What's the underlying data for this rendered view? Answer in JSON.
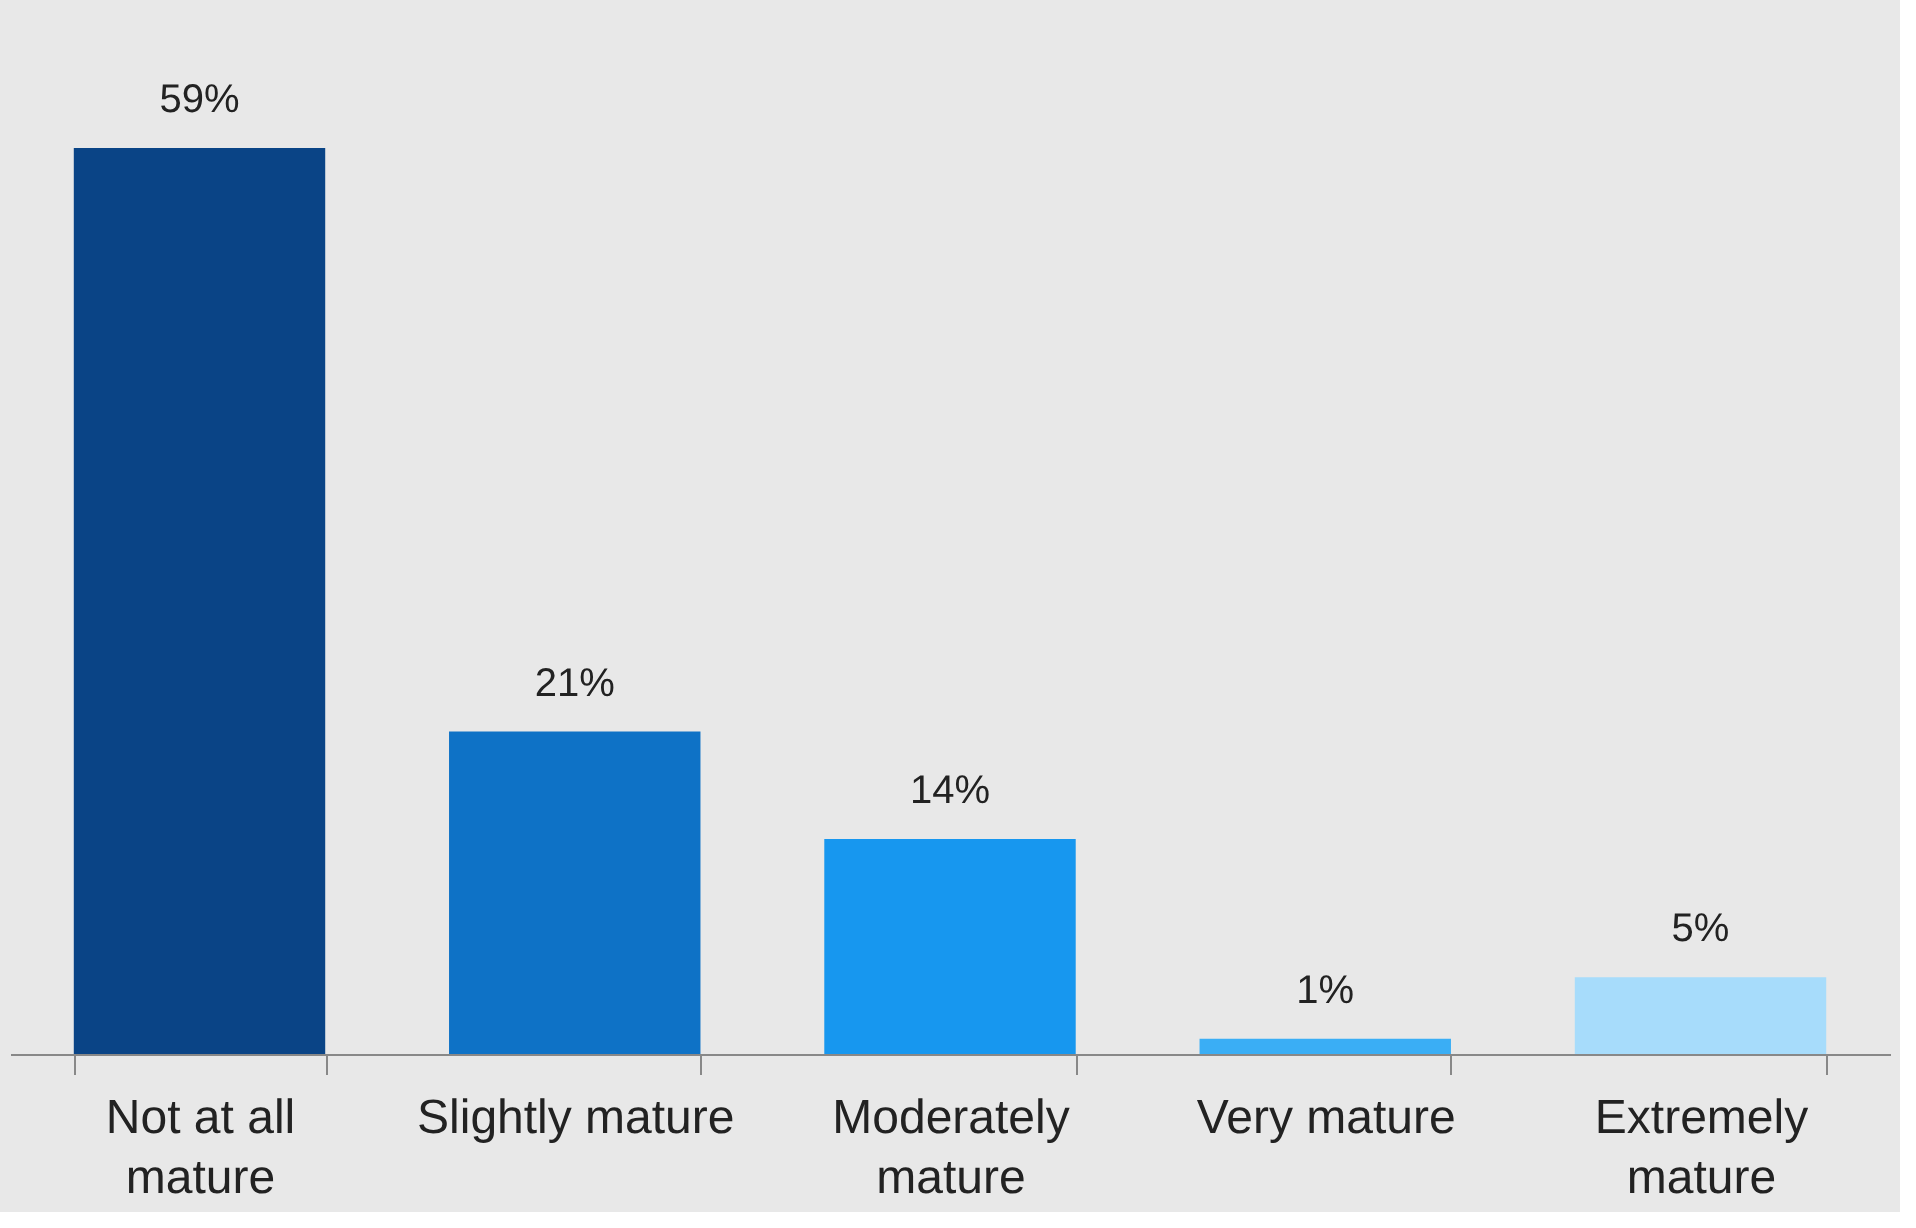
{
  "chart_data": {
    "type": "bar",
    "categories": [
      "Not at all mature",
      "Slightly mature",
      "Moderately mature",
      "Very mature",
      "Extremely mature"
    ],
    "values": [
      59,
      21,
      14,
      1,
      5
    ],
    "colors": [
      "#0a4486",
      "#0e72c6",
      "#1797ef",
      "#3aaef5",
      "#a7dcfb"
    ],
    "value_labels": [
      "59%",
      "21%",
      "14%",
      "1%",
      "5%"
    ]
  }
}
